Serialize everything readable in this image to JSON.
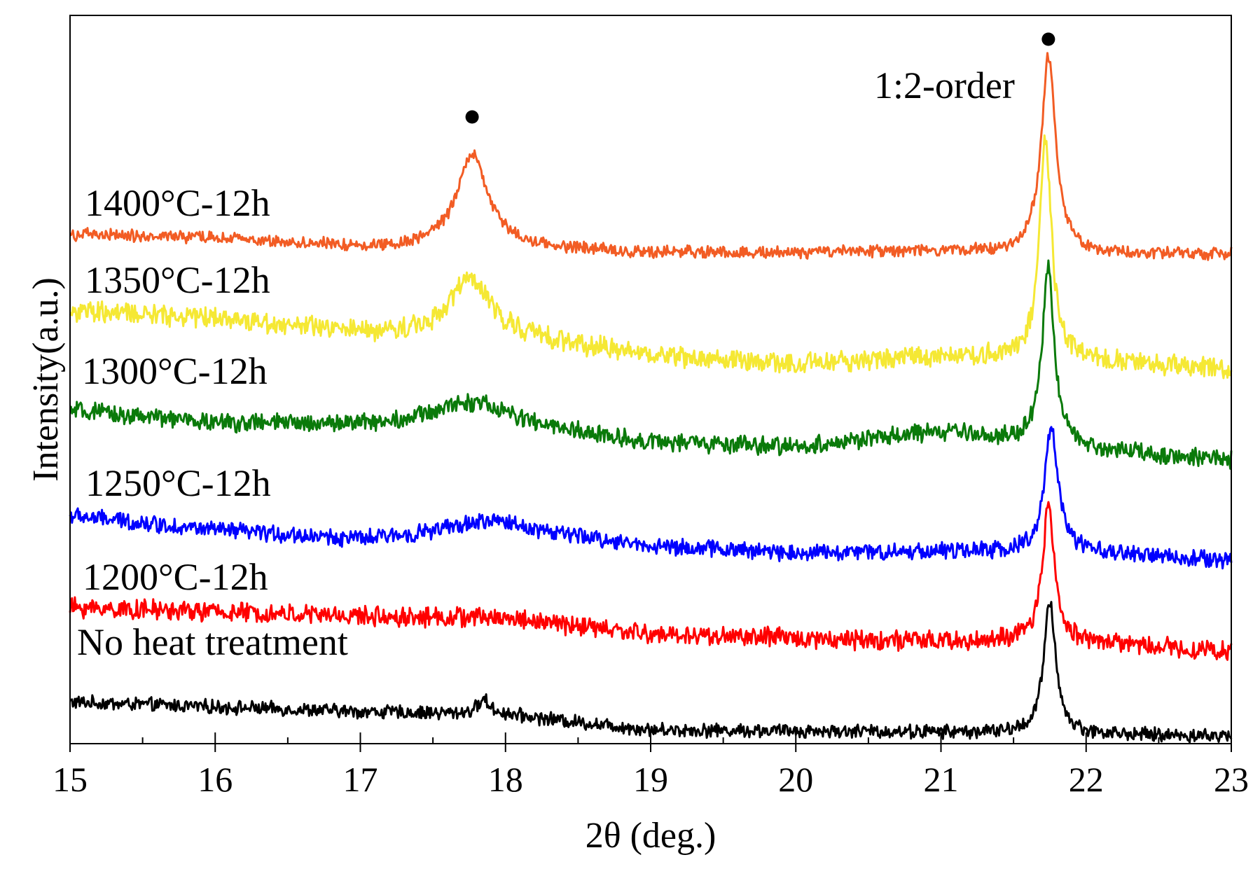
{
  "chart_data": {
    "type": "line",
    "title": "",
    "xlabel": "2θ (deg.)",
    "ylabel": "Intensity(a.u.)",
    "xlim": [
      15,
      23
    ],
    "ylim": [
      0,
      100
    ],
    "xticks": [
      "15",
      "16",
      "17",
      "18",
      "19",
      "20",
      "21",
      "22",
      "23"
    ],
    "grid": false,
    "legend": "inline labels",
    "series": [
      {
        "name": "No heat treatment",
        "color": "#000000",
        "baseline": [
          [
            15,
            5.7
          ],
          [
            17,
            4.4
          ],
          [
            18,
            4.0
          ],
          [
            19,
            1.9
          ],
          [
            21,
            1.6
          ],
          [
            22,
            1.3
          ],
          [
            23,
            1.0
          ]
        ],
        "peaks": [
          {
            "x": 17.85,
            "height": 2.0,
            "width": 0.05
          },
          {
            "x": 21.75,
            "height": 18.0,
            "width": 0.05
          }
        ],
        "noise": 0.9
      },
      {
        "name": "1200°C-12h",
        "color": "#ff0000",
        "baseline": [
          [
            15,
            18.7
          ],
          [
            17,
            17.5
          ],
          [
            18,
            17.3
          ],
          [
            19,
            15.0
          ],
          [
            21,
            14.0
          ],
          [
            22,
            14.0
          ],
          [
            23,
            12.6
          ]
        ],
        "peaks": [
          {
            "x": 21.74,
            "height": 18.5,
            "width": 0.05
          }
        ],
        "noise": 1.3
      },
      {
        "name": "1250°C-12h",
        "color": "#0000ff",
        "baseline": [
          [
            15,
            31.3
          ],
          [
            16,
            29.3
          ],
          [
            17,
            28.0
          ],
          [
            18,
            29.5
          ],
          [
            19,
            27.1
          ],
          [
            20,
            26.2
          ],
          [
            21,
            26.4
          ],
          [
            22,
            26.2
          ],
          [
            23,
            25.1
          ]
        ],
        "peaks": [
          {
            "x": 17.85,
            "height": 1.2,
            "width": 0.3
          },
          {
            "x": 21.76,
            "height": 17.4,
            "width": 0.055
          }
        ],
        "noise": 1.1
      },
      {
        "name": "1300°C-12h",
        "color": "#0a7a0a",
        "baseline": [
          [
            15,
            45.7
          ],
          [
            16,
            44.0
          ],
          [
            17,
            43.7
          ],
          [
            18,
            43.6
          ],
          [
            19,
            41.3
          ],
          [
            20,
            40.7
          ],
          [
            21,
            42.8
          ],
          [
            22,
            40.4
          ],
          [
            23,
            39.0
          ]
        ],
        "peaks": [
          {
            "x": 17.75,
            "height": 3.3,
            "width": 0.3
          },
          {
            "x": 21.74,
            "height": 24.3,
            "width": 0.05
          }
        ],
        "noise": 1.2
      },
      {
        "name": "1350°C-12h",
        "color": "#f5e834",
        "baseline": [
          [
            15,
            59.3
          ],
          [
            16,
            58.5
          ],
          [
            17,
            56.3
          ],
          [
            18,
            55.9
          ],
          [
            19,
            53.3
          ],
          [
            20,
            52.0
          ],
          [
            21,
            53.3
          ],
          [
            22,
            52.6
          ],
          [
            23,
            51.4
          ]
        ],
        "peaks": [
          {
            "x": 17.75,
            "height": 7.8,
            "width": 0.17
          },
          {
            "x": 21.72,
            "height": 30.2,
            "width": 0.05
          }
        ],
        "noise": 1.4
      },
      {
        "name": "1400°C-12h",
        "color": "#f25c24",
        "baseline": [
          [
            15,
            69.9
          ],
          [
            16,
            69.4
          ],
          [
            17,
            68.1
          ],
          [
            18,
            68.1
          ],
          [
            19,
            67.4
          ],
          [
            20,
            67.4
          ],
          [
            21,
            67.6
          ],
          [
            22,
            67.2
          ],
          [
            23,
            67.2
          ]
        ],
        "peaks": [
          {
            "x": 17.77,
            "height": 12.8,
            "width": 0.13
          },
          {
            "x": 21.74,
            "height": 27.0,
            "width": 0.06
          }
        ],
        "noise": 0.8
      }
    ],
    "annotations": [
      {
        "text": "1:2-order",
        "x": 21.74
      },
      {
        "marker": "●",
        "x": 17.77
      },
      {
        "marker": "●",
        "x": 21.74
      }
    ]
  }
}
